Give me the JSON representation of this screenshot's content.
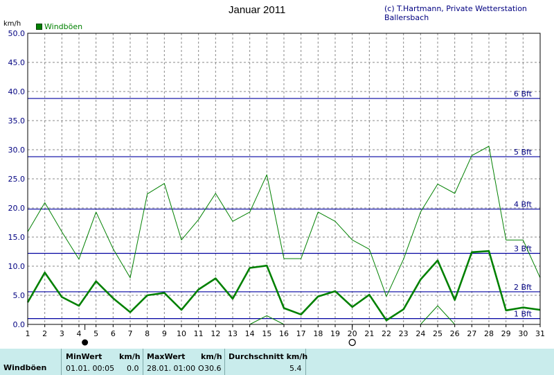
{
  "header": {
    "title": "Januar 2011",
    "credit": "(c) T.Hartmann, Private Wetterstation Ballersbach",
    "unit": "km/h",
    "legend": "Windböen"
  },
  "colors": {
    "series": "#008000",
    "beaufort_lines": "#0000a0",
    "beaufort_labels": "#000080",
    "grid": "#888888",
    "panel_bg": "#c9ecec"
  },
  "chart_data": {
    "type": "line",
    "ylabel": "km/h",
    "ylim": [
      0,
      50
    ],
    "xlim": [
      1,
      31
    ],
    "y_ticks": [
      "0.0",
      "5.0",
      "10.0",
      "15.0",
      "20.0",
      "25.0",
      "30.0",
      "35.0",
      "40.0",
      "45.0",
      "50.0"
    ],
    "x_ticks": [
      "1",
      "2",
      "3",
      "4",
      "5",
      "6",
      "7",
      "8",
      "9",
      "10",
      "11",
      "12",
      "13",
      "14",
      "15",
      "16",
      "17",
      "18",
      "19",
      "20",
      "21",
      "22",
      "23",
      "24",
      "25",
      "26",
      "27",
      "28",
      "29",
      "30",
      "31"
    ],
    "grid": true,
    "legend_position": "top-left",
    "series": [
      {
        "name": "Windböen",
        "style": "thick",
        "x": [
          1,
          2,
          3,
          4,
          5,
          6,
          7,
          8,
          9,
          10,
          11,
          12,
          13,
          14,
          15,
          16,
          17,
          18,
          19,
          20,
          21,
          22,
          23,
          24,
          25,
          26,
          27,
          28,
          29,
          30,
          31
        ],
        "y": [
          3.8,
          8.9,
          4.7,
          3.2,
          7.4,
          4.5,
          2.1,
          5.0,
          5.4,
          2.5,
          6.0,
          7.9,
          4.4,
          9.7,
          10.1,
          2.8,
          1.7,
          4.8,
          5.7,
          3.0,
          5.1,
          0.7,
          2.6,
          7.7,
          11.0,
          4.2,
          12.4,
          12.6,
          2.4,
          2.9,
          2.5
        ]
      },
      {
        "style": "thin",
        "x": [
          1,
          2,
          3,
          4,
          5,
          6,
          7,
          8,
          9,
          10,
          11,
          12,
          13,
          14,
          15,
          16,
          17,
          18,
          19,
          20,
          21,
          22,
          23,
          24,
          25,
          26,
          27,
          28,
          29,
          30,
          31
        ],
        "y": [
          15.9,
          20.9,
          15.9,
          11.2,
          19.3,
          13.0,
          8.0,
          22.4,
          24.2,
          14.5,
          18.0,
          22.5,
          17.7,
          19.3,
          25.7,
          11.3,
          11.3,
          19.3,
          17.7,
          14.5,
          12.9,
          4.8,
          11.2,
          19.3,
          24.1,
          22.5,
          29.0,
          30.6,
          14.5,
          14.5,
          8.0
        ]
      },
      {
        "style": "thin",
        "x": [
          14,
          15,
          16
        ],
        "y": [
          0.0,
          1.5,
          0.0
        ]
      },
      {
        "style": "thin",
        "x": [
          24,
          25,
          26
        ],
        "y": [
          0.0,
          3.2,
          0.0
        ]
      }
    ],
    "reference_lines": [
      {
        "label": "1 Bft",
        "value": 1.0
      },
      {
        "label": "2 Bft",
        "value": 5.6
      },
      {
        "label": "3 Bft",
        "value": 12.2
      },
      {
        "label": "4 Bft",
        "value": 19.8
      },
      {
        "label": "5 Bft",
        "value": 28.8
      },
      {
        "label": "6 Bft",
        "value": 38.8
      }
    ],
    "markers": [
      {
        "type": "filled-circle",
        "x": 4.35
      },
      {
        "type": "open-circle",
        "x": 20.0
      }
    ]
  },
  "stats": {
    "row_label": "Windböen",
    "min": {
      "label": "MinWert",
      "unit": "km/h",
      "time": "01.01.  00:05",
      "value": "0.0"
    },
    "max": {
      "label": "MaxWert",
      "unit": "km/h",
      "time": "28.01.  01:00",
      "dir": "O",
      "value": "30.6"
    },
    "avg": {
      "label": "Durchschnitt km/h",
      "value": "5.4"
    }
  }
}
